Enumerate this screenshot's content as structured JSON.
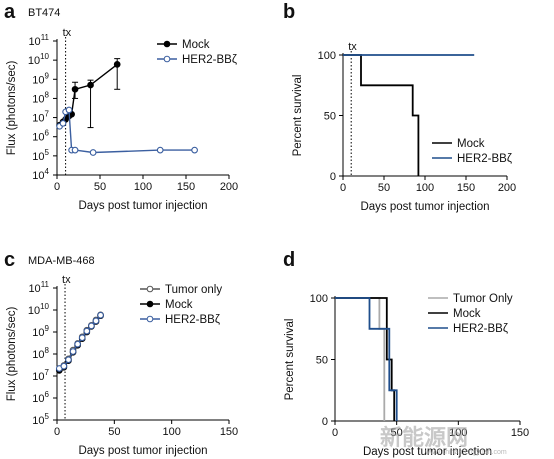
{
  "chart_data": [
    {
      "panel": "a",
      "type": "line",
      "title": "BT474",
      "xlabel": "Days post tumor injection",
      "ylabel": "Flux (photons/sec)",
      "xlim": [
        0,
        200
      ],
      "xticks": [
        0,
        50,
        100,
        150,
        200
      ],
      "ylim_log10": [
        4,
        11
      ],
      "yscale": "log",
      "yticks": [
        "10^4",
        "10^5",
        "10^6",
        "10^7",
        "10^8",
        "10^9",
        "10^10",
        "10^11"
      ],
      "annotation": {
        "text": "tx",
        "x": 10
      },
      "legend": "top-right",
      "series": [
        {
          "name": "Mock",
          "color": "#000000",
          "marker": "filled-circle",
          "x": [
            3,
            7,
            10,
            14,
            17,
            21,
            39,
            70
          ],
          "y": [
            4000000,
            6000000,
            8000000,
            12000000,
            15000000,
            300000000,
            500000000,
            6000000000
          ],
          "y_low": [
            null,
            null,
            null,
            null,
            null,
            100000000,
            3000000,
            300000000
          ],
          "y_high": [
            null,
            null,
            null,
            null,
            null,
            700000000,
            900000000,
            12000000000
          ]
        },
        {
          "name": "HER2-BBζ",
          "color": "#3b5fa0",
          "marker": "open-circle",
          "x": [
            3,
            7,
            10,
            14,
            17,
            21,
            42,
            120,
            160
          ],
          "y": [
            3500000,
            5000000,
            20000000,
            25000000,
            200000,
            200000,
            150000,
            200000,
            200000
          ]
        }
      ]
    },
    {
      "panel": "b",
      "type": "line",
      "xlabel": "Days post tumor injection",
      "ylabel": "Percent survival",
      "xlim": [
        0,
        200
      ],
      "xticks": [
        0,
        50,
        100,
        150,
        200
      ],
      "ylim": [
        0,
        100
      ],
      "yticks": [
        0,
        50,
        100
      ],
      "annotation": {
        "text": "tx",
        "x": 10
      },
      "legend": "right",
      "series": [
        {
          "name": "Mock",
          "color": "#000000",
          "step": true,
          "x": [
            0,
            22,
            22,
            85,
            85,
            92,
            92
          ],
          "y": [
            100,
            100,
            75,
            75,
            50,
            50,
            0
          ]
        },
        {
          "name": "HER2-BBζ",
          "color": "#1f4e8c",
          "step": true,
          "x": [
            0,
            160
          ],
          "y": [
            100,
            100
          ]
        }
      ]
    },
    {
      "panel": "c",
      "type": "line",
      "title": "MDA-MB-468",
      "xlabel": "Days post tumor injection",
      "ylabel": "Flux (photons/sec)",
      "xlim": [
        0,
        150
      ],
      "xticks": [
        0,
        50,
        100,
        150
      ],
      "ylim_log10": [
        5,
        11
      ],
      "yscale": "log",
      "yticks": [
        "10^5",
        "10^6",
        "10^7",
        "10^8",
        "10^9",
        "10^10",
        "10^11"
      ],
      "annotation": {
        "text": "tx",
        "x": 7
      },
      "legend": "top-right",
      "series": [
        {
          "name": "Tumor only",
          "color": "#555555",
          "marker": "open-circle",
          "x": [
            2,
            6,
            10,
            14,
            18,
            22,
            26,
            30,
            34,
            38
          ],
          "y": [
            20000000,
            30000000,
            60000000,
            150000000,
            300000000,
            600000000,
            1200000000,
            2000000000,
            3500000000,
            6000000000
          ]
        },
        {
          "name": "Mock",
          "color": "#000000",
          "marker": "filled-circle",
          "x": [
            2,
            6,
            10,
            14,
            18,
            22,
            26,
            30,
            34,
            38
          ],
          "y": [
            18000000,
            25000000,
            50000000,
            120000000,
            250000000,
            500000000,
            1000000000,
            1800000000,
            3000000000,
            5500000000
          ]
        },
        {
          "name": "HER2-BBζ",
          "color": "#3b5fa0",
          "marker": "open-circle",
          "x": [
            2,
            6,
            10,
            14,
            18,
            22,
            26,
            30,
            34,
            38
          ],
          "y": [
            22000000,
            28000000,
            55000000,
            130000000,
            280000000,
            550000000,
            1100000000,
            1900000000,
            3200000000,
            5800000000
          ]
        }
      ]
    },
    {
      "panel": "d",
      "type": "line",
      "xlabel": "Days post tumor injection",
      "ylabel": "Percent survival",
      "xlim": [
        0,
        150
      ],
      "xticks": [
        0,
        50,
        100,
        150
      ],
      "ylim": [
        0,
        100
      ],
      "yticks": [
        0,
        50,
        100
      ],
      "legend": "top-right",
      "series": [
        {
          "name": "Tumor Only",
          "color": "#aaaaaa",
          "step": true,
          "x": [
            0,
            36,
            36,
            40,
            40
          ],
          "y": [
            100,
            100,
            75,
            75,
            0
          ]
        },
        {
          "name": "Mock",
          "color": "#000000",
          "step": true,
          "x": [
            0,
            42,
            42,
            46,
            46,
            48,
            48
          ],
          "y": [
            100,
            100,
            50,
            50,
            25,
            25,
            0
          ]
        },
        {
          "name": "HER2-BBζ",
          "color": "#1f4e8c",
          "step": true,
          "x": [
            0,
            28,
            28,
            44,
            44,
            50,
            50
          ],
          "y": [
            100,
            100,
            75,
            75,
            25,
            25,
            0
          ]
        }
      ]
    }
  ],
  "watermark": {
    "text": "新能源网",
    "url": "www.china-nengyuan.com"
  }
}
